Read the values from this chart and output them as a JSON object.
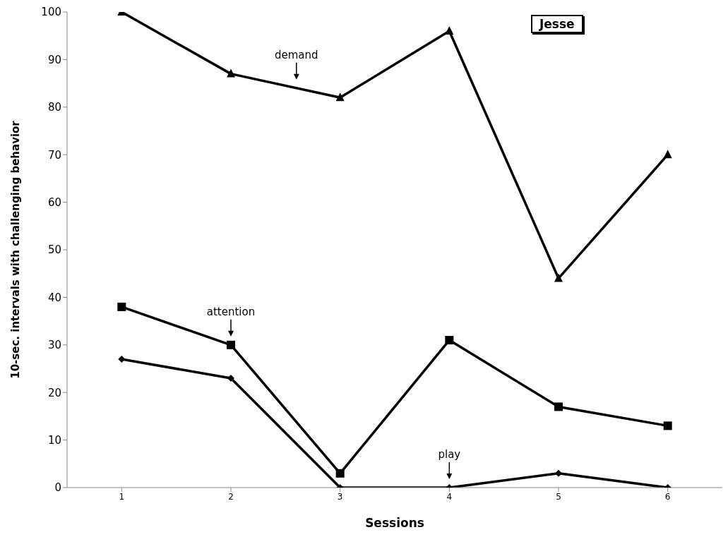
{
  "chart_data": {
    "type": "line",
    "title": "Jesse",
    "xlabel": "Sessions",
    "ylabel": "10-sec. intervals with challenging behavior",
    "x": [
      1,
      2,
      3,
      4,
      5,
      6
    ],
    "xlim": [
      0.5,
      6.5
    ],
    "xticks": [
      1,
      2,
      3,
      4,
      5,
      6
    ],
    "ylim": [
      0,
      100
    ],
    "yticks": [
      0,
      10,
      20,
      30,
      40,
      50,
      60,
      70,
      80,
      90,
      100
    ],
    "grid": false,
    "line_style": "solid",
    "series": [
      {
        "color": "#000000",
        "marker": "triangle",
        "values": [
          100,
          87,
          82,
          96,
          44,
          70
        ]
      },
      {
        "color": "#000000",
        "marker": "square",
        "values": [
          38,
          30,
          3,
          31,
          17,
          13
        ]
      },
      {
        "color": "#000000",
        "marker": "diamond",
        "values": [
          27,
          23,
          0,
          0,
          3,
          0
        ]
      }
    ],
    "annotations": [
      {
        "text": "demand",
        "x": 2.6,
        "y": 84
      },
      {
        "text": "attention",
        "x": 2,
        "y": 30
      },
      {
        "text": "play",
        "x": 4,
        "y": 0
      }
    ]
  }
}
